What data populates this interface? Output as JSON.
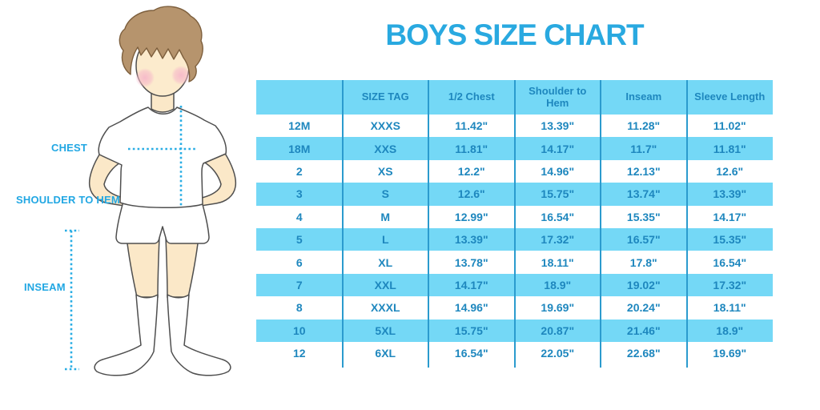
{
  "title": "BOYS SIZE CHART",
  "illustration": {
    "figure": "boy-in-tshirt-shorts-and-knee-socks",
    "chest_label": "CHEST",
    "shoulder_to_hem_label": "SHOULDER TO HEM",
    "inseam_label": "INSEAM"
  },
  "chart_data": {
    "type": "table",
    "title": "BOYS SIZE CHART",
    "columns": [
      "",
      "SIZE TAG",
      "1/2 Chest",
      "Shoulder to Hem",
      "Inseam",
      "Sleeve Length"
    ],
    "rows": [
      [
        "12M",
        "XXXS",
        "11.42\"",
        "13.39\"",
        "11.28\"",
        "11.02\""
      ],
      [
        "18M",
        "XXS",
        "11.81\"",
        "14.17\"",
        "11.7\"",
        "11.81\""
      ],
      [
        "2",
        "XS",
        "12.2\"",
        "14.96\"",
        "12.13\"",
        "12.6\""
      ],
      [
        "3",
        "S",
        "12.6\"",
        "15.75\"",
        "13.74\"",
        "13.39\""
      ],
      [
        "4",
        "M",
        "12.99\"",
        "16.54\"",
        "15.35\"",
        "14.17\""
      ],
      [
        "5",
        "L",
        "13.39\"",
        "17.32\"",
        "16.57\"",
        "15.35\""
      ],
      [
        "6",
        "XL",
        "13.78\"",
        "18.11\"",
        "17.8\"",
        "16.54\""
      ],
      [
        "7",
        "XXL",
        "14.17\"",
        "18.9\"",
        "19.02\"",
        "17.32\""
      ],
      [
        "8",
        "XXXL",
        "14.96\"",
        "19.69\"",
        "20.24\"",
        "18.11\""
      ],
      [
        "10",
        "5XL",
        "15.75\"",
        "20.87\"",
        "21.46\"",
        "18.9\""
      ],
      [
        "12",
        "6XL",
        "16.54\"",
        "22.05\"",
        "22.68\"",
        "19.69\""
      ]
    ],
    "layout": {
      "row_striping": "white / cyan alternating, header cyan",
      "legend_position": "none",
      "grid": "vertical dividers only"
    }
  },
  "colors": {
    "accent_cyan": "#74D8F6",
    "table_line": "#2B9BCE",
    "table_text": "#1E87BE",
    "title_blue": "#29A9E0",
    "label_blue": "#21A7E3",
    "dotted_line": "#29ADE4",
    "skin": "#FBE8C8",
    "hair": "#B6946D"
  }
}
